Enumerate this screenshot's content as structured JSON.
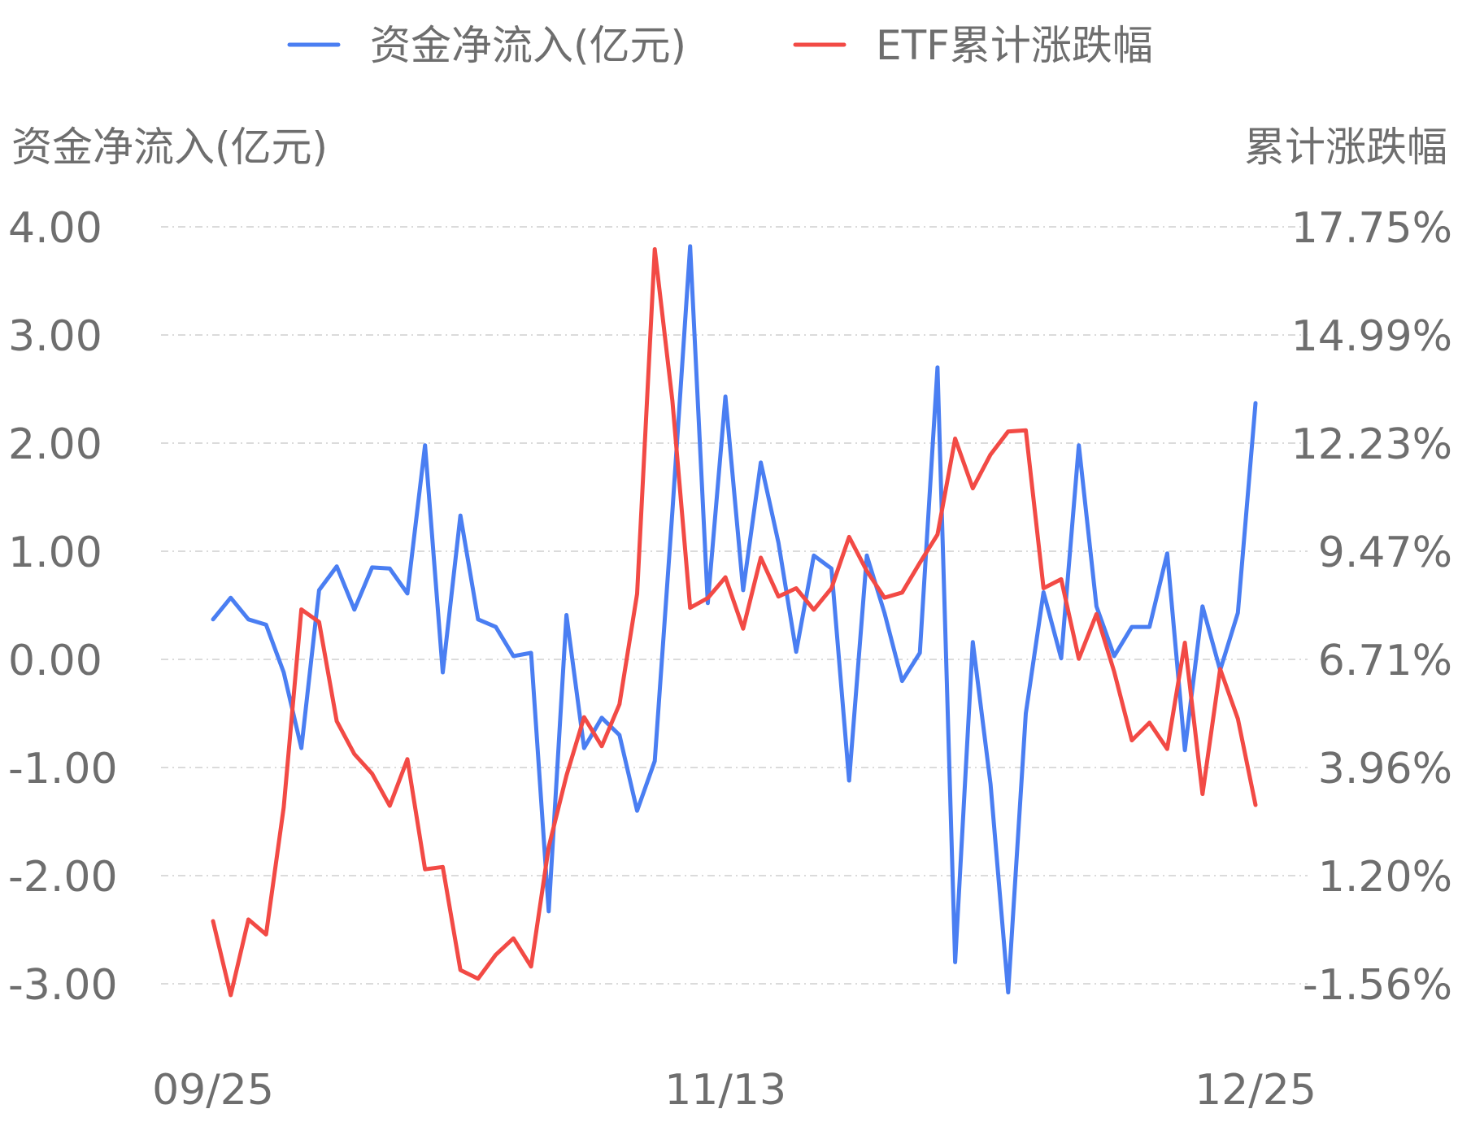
{
  "chart_data": {
    "type": "line",
    "legend": {
      "placement": "top-center"
    },
    "left_axis_title": "资金净流入(亿元)",
    "right_axis_title": "累计涨跌幅",
    "left_ticks": [
      "4.00",
      "3.00",
      "2.00",
      "1.00",
      "0.00",
      "-1.00",
      "-2.00",
      "-3.00"
    ],
    "right_ticks": [
      "17.75%",
      "14.99%",
      "12.23%",
      "9.47%",
      "6.71%",
      "3.96%",
      "1.20%",
      "-1.56%"
    ],
    "left_ylim": [
      -3.0,
      4.0
    ],
    "right_ylim": [
      -1.56,
      17.75
    ],
    "x_tick_labels": [
      "09/25",
      "11/13",
      "12/25"
    ],
    "x_tick_index": [
      0,
      29,
      59
    ],
    "grid": true,
    "series": [
      {
        "name": "资金净流入(亿元)",
        "axis": "left",
        "color": "#4a7ef2",
        "values": [
          0.37,
          0.57,
          0.37,
          0.32,
          -0.12,
          -0.82,
          0.64,
          0.86,
          0.46,
          0.85,
          0.84,
          0.61,
          1.98,
          -0.12,
          1.33,
          0.37,
          0.3,
          0.03,
          0.06,
          -2.33,
          0.41,
          -0.82,
          -0.54,
          -0.7,
          -1.4,
          -0.94,
          1.37,
          3.82,
          0.52,
          2.43,
          0.64,
          1.82,
          1.08,
          0.07,
          0.96,
          0.84,
          -1.12,
          0.96,
          0.43,
          -0.2,
          0.06,
          2.7,
          -2.8,
          0.16,
          -1.15,
          -3.08,
          -0.5,
          0.62,
          0.01,
          1.98,
          0.49,
          0.03,
          0.3,
          0.3,
          0.98,
          -0.84,
          0.49,
          -0.1,
          0.43,
          2.37
        ]
      },
      {
        "name": "ETF累计涨跌幅",
        "axis": "right",
        "color": "#f24a45",
        "values": [
          0.04,
          -1.85,
          0.08,
          -0.3,
          2.94,
          7.99,
          7.67,
          5.14,
          4.3,
          3.8,
          2.98,
          4.17,
          1.36,
          1.42,
          -1.21,
          -1.43,
          -0.82,
          -0.4,
          -1.12,
          1.93,
          3.75,
          5.24,
          4.5,
          5.57,
          8.39,
          17.18,
          13.31,
          8.03,
          8.28,
          8.81,
          7.5,
          9.31,
          8.32,
          8.53,
          7.98,
          8.53,
          9.84,
          8.97,
          8.29,
          8.42,
          9.18,
          9.9,
          12.35,
          11.08,
          11.94,
          12.53,
          12.56,
          8.53,
          8.76,
          6.73,
          7.87,
          6.4,
          4.65,
          5.1,
          4.43,
          7.14,
          3.28,
          6.47,
          5.2,
          3.0
        ]
      }
    ]
  }
}
